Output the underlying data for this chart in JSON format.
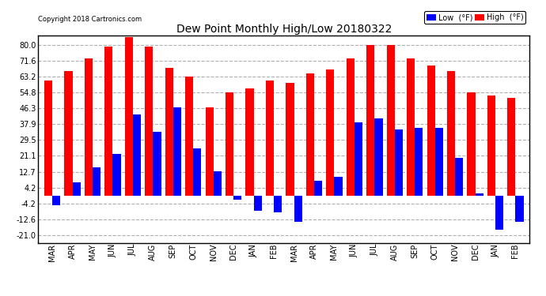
{
  "title": "Dew Point Monthly High/Low 20180322",
  "copyright": "Copyright 2018 Cartronics.com",
  "months": [
    "MAR",
    "APR",
    "MAY",
    "JUN",
    "JUL",
    "AUG",
    "SEP",
    "OCT",
    "NOV",
    "DEC",
    "JAN",
    "FEB",
    "MAR",
    "APR",
    "MAY",
    "JUN",
    "JUL",
    "AUG",
    "SEP",
    "OCT",
    "NOV",
    "DEC",
    "JAN",
    "FEB"
  ],
  "high": [
    61,
    66,
    73,
    79,
    84,
    79,
    68,
    63,
    47,
    55,
    57,
    61,
    60,
    65,
    67,
    73,
    80,
    80,
    73,
    69,
    66,
    55,
    53,
    52
  ],
  "low": [
    -5,
    7,
    15,
    22,
    43,
    34,
    47,
    25,
    13,
    -2,
    -8,
    -9,
    -14,
    8,
    10,
    39,
    41,
    35,
    36,
    36,
    20,
    1,
    -18,
    -14
  ],
  "high_color": "#ff0000",
  "low_color": "#0000ff",
  "bg_color": "#ffffff",
  "grid_color": "#b0b0b0",
  "yticks": [
    -21.0,
    -12.6,
    -4.2,
    4.2,
    12.7,
    21.1,
    29.5,
    37.9,
    46.3,
    54.8,
    63.2,
    71.6,
    80.0
  ],
  "ylim": [
    -25,
    85
  ],
  "bar_width": 0.4
}
